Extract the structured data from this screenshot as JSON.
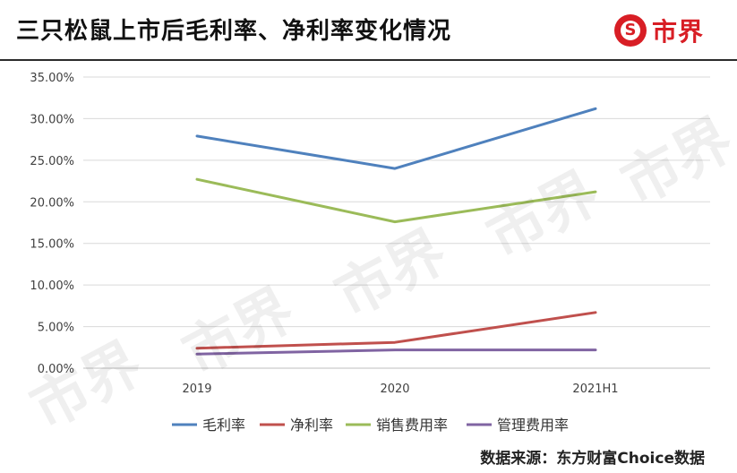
{
  "header": {
    "title": "三只松鼠上市后毛利率、净利率变化情况",
    "logo_text": "市界",
    "logo_mark": "S"
  },
  "watermark_text": "市界",
  "source": "数据来源：东方财富Choice数据",
  "colors": {
    "grid": "#d9d9d9",
    "axis": "#bfbfbf",
    "tick_text": "#404040",
    "brand_red": "#d81e25"
  },
  "chart_data": {
    "type": "line",
    "title": "",
    "xlabel": "",
    "ylabel": "",
    "categories": [
      "2019",
      "2020",
      "2021H1"
    ],
    "ylim": [
      0,
      0.35
    ],
    "yticks": [
      0,
      0.05,
      0.1,
      0.15,
      0.2,
      0.25,
      0.3,
      0.35
    ],
    "ytick_labels": [
      "0.00%",
      "5.00%",
      "10.00%",
      "15.00%",
      "20.00%",
      "25.00%",
      "30.00%",
      "35.00%"
    ],
    "grid": true,
    "legend_position": "bottom",
    "series": [
      {
        "name": "毛利率",
        "color": "#4f81bd",
        "values": [
          0.279,
          0.24,
          0.312
        ]
      },
      {
        "name": "净利率",
        "color": "#c0504d",
        "values": [
          0.024,
          0.031,
          0.067
        ]
      },
      {
        "name": "销售费用率",
        "color": "#9bbb59",
        "values": [
          0.227,
          0.176,
          0.212
        ]
      },
      {
        "name": "管理费用率",
        "color": "#8064a2",
        "values": [
          0.017,
          0.022,
          0.022
        ]
      }
    ]
  }
}
